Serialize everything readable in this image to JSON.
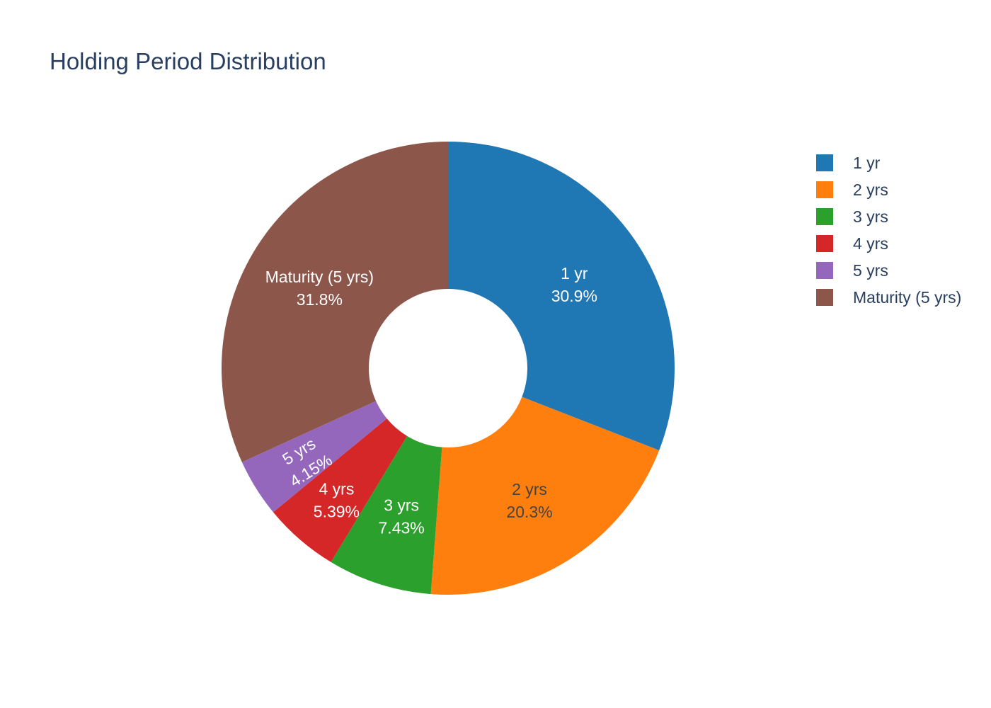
{
  "chart_data": {
    "type": "pie",
    "title": "Holding Period Distribution",
    "hole": 0.35,
    "direction": "clockwise",
    "sort": "none",
    "legend_position": "top-right",
    "categories": [
      "1 yr",
      "2 yrs",
      "3 yrs",
      "4 yrs",
      "5 yrs",
      "Maturity (5 yrs)"
    ],
    "values": [
      30.9,
      20.3,
      7.43,
      5.39,
      4.15,
      31.8
    ],
    "labels_text": [
      "30.9%",
      "20.3%",
      "7.43%",
      "5.39%",
      "4.15%",
      "31.8%"
    ],
    "colors": [
      "#1f77b4",
      "#ff7f0e",
      "#2ca02c",
      "#d62728",
      "#9467bd",
      "#8c564b"
    ],
    "label_colors": [
      "#ffffff",
      "#444444",
      "#ffffff",
      "#ffffff",
      "#ffffff",
      "#ffffff"
    ]
  }
}
